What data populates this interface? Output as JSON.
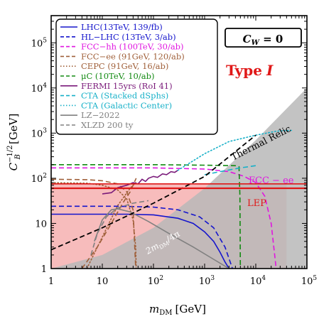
{
  "chart_data": {
    "type": "line",
    "xlabel_main": "m",
    "xlabel_sub": "DM",
    "xlabel_unit": "[GeV]",
    "ylabel_main": "C",
    "ylabel_sub": "B",
    "ylabel_sup": "−1/2",
    "ylabel_unit": "[GeV]",
    "xscale": "log",
    "yscale": "log",
    "xlim": [
      1,
      100000
    ],
    "ylim": [
      1,
      400000
    ],
    "xticks": [
      {
        "v": 1,
        "base": "1",
        "exp": ""
      },
      {
        "v": 10,
        "base": "10",
        "exp": ""
      },
      {
        "v": 100,
        "base": "10",
        "exp": "2"
      },
      {
        "v": 1000,
        "base": "10",
        "exp": "3"
      },
      {
        "v": 10000,
        "base": "10",
        "exp": "4"
      },
      {
        "v": 100000,
        "base": "10",
        "exp": "5"
      }
    ],
    "yticks": [
      {
        "v": 1,
        "base": "1",
        "exp": ""
      },
      {
        "v": 10,
        "base": "10",
        "exp": ""
      },
      {
        "v": 100,
        "base": "10",
        "exp": "2"
      },
      {
        "v": 1000,
        "base": "10",
        "exp": "3"
      },
      {
        "v": 10000,
        "base": "10",
        "exp": "4"
      },
      {
        "v": 100000,
        "base": "10",
        "exp": "5"
      }
    ],
    "badge": "C_W = 0",
    "badge_main": "C",
    "badge_sub": "W",
    "badge_rest": " = 0",
    "type_label": "Type I",
    "type_label_word": "Type",
    "type_label_numeral": "I",
    "annotations": {
      "thermal_relic": "Thermal Relic",
      "fcc_ee": "FCC − ee",
      "lep": "LEP",
      "unitarity_main": "2m",
      "unitarity_sub": "DM",
      "unitarity_rest": "/4π"
    },
    "legend": [
      {
        "label": "LHC(13TeV, 139/fb)",
        "color": "#1515cc",
        "dash": "solid"
      },
      {
        "label": "HL−LHC (13TeV, 3/ab)",
        "color": "#1515cc",
        "dash": "dashed"
      },
      {
        "label": "FCC−hh (100TeV, 30/ab)",
        "color": "#e015e0",
        "dash": "dashed"
      },
      {
        "label": "FCC−ee (91GeV, 120/ab)",
        "color": "#a0603a",
        "dash": "dashed"
      },
      {
        "label": "CEPC (91GeV, 16/ab)",
        "color": "#a0603a",
        "dash": "dotted"
      },
      {
        "label": "μC (10TeV, 10/ab)",
        "color": "#128a12",
        "dash": "dashed"
      },
      {
        "label": "FERMI 15yrs (RoI 41)",
        "color": "#7a1a7a",
        "dash": "solid"
      },
      {
        "label": "CTA (Stacked dSphs)",
        "color": "#16b0c8",
        "dash": "dashed"
      },
      {
        "label": "CTA (Galactic Center)",
        "color": "#16b0c8",
        "dash": "dotted"
      },
      {
        "label": "LZ−2022",
        "color": "#808080",
        "dash": "solid"
      },
      {
        "label": "XLZD 200 ty",
        "color": "#808080",
        "dash": "dashed"
      }
    ],
    "colors": {
      "lep_line": "#e01818",
      "lep_fill": "#f7bcbc",
      "unitarity_fill": "#b8b8b8",
      "type_label": "#e01818",
      "thermal_relic": "#000000"
    },
    "series": [
      {
        "key": "lhc",
        "color": "#1515cc",
        "dash": "solid",
        "x": [
          1,
          30,
          100,
          300,
          600,
          1000,
          1500,
          2000,
          2500,
          3000
        ],
        "y": [
          16,
          16,
          15.5,
          13,
          10,
          6.5,
          4,
          2.3,
          1.4,
          1
        ]
      },
      {
        "key": "hllhc",
        "color": "#1515cc",
        "dash": "dashed",
        "x": [
          1,
          20,
          100,
          300,
          800,
          1500,
          2500,
          3500
        ],
        "y": [
          24,
          24,
          23,
          20,
          14,
          8,
          3,
          1
        ]
      },
      {
        "key": "fcchh",
        "color": "#e015e0",
        "dash": "dashed",
        "x": [
          1,
          100,
          1000,
          3000,
          6000,
          10000,
          15000,
          20000,
          25000
        ],
        "y": [
          170,
          170,
          160,
          140,
          110,
          80,
          40,
          10,
          1
        ]
      },
      {
        "key": "fccee",
        "color": "#a0603a",
        "dash": "dashed",
        "x": [
          4,
          8,
          15,
          25,
          35,
          42,
          45,
          46
        ],
        "y": [
          1,
          3,
          10,
          28,
          50,
          80,
          95,
          100
        ]
      },
      {
        "key": "fccee_top",
        "color": "#a0603a",
        "dash": "dashed",
        "x": [
          1,
          5,
          10,
          20,
          30,
          40,
          45
        ],
        "y": [
          95,
          93,
          88,
          75,
          50,
          20,
          1
        ]
      },
      {
        "key": "cepc",
        "color": "#a0603a",
        "dash": "dotted",
        "x": [
          1,
          5,
          10,
          20,
          30,
          40,
          45,
          46
        ],
        "y": [
          80,
          78,
          70,
          55,
          35,
          12,
          3,
          1
        ]
      },
      {
        "key": "cepc_rise",
        "color": "#a0603a",
        "dash": "dotted",
        "x": [
          5,
          10,
          20,
          35,
          45
        ],
        "y": [
          1,
          5,
          25,
          60,
          80
        ]
      },
      {
        "key": "muc",
        "color": "#128a12",
        "dash": "dashed",
        "x": [
          1,
          100,
          1000,
          4000,
          4700,
          4900,
          5000
        ],
        "y": [
          200,
          200,
          195,
          190,
          180,
          40,
          1
        ]
      },
      {
        "key": "fermi",
        "color": "#7a1a7a",
        "dash": "solid",
        "x": [
          10,
          15,
          20,
          30,
          40,
          50,
          60,
          70,
          80,
          100,
          120,
          150,
          180,
          220,
          260,
          300
        ],
        "y": [
          45,
          48,
          62,
          70,
          80,
          75,
          95,
          85,
          100,
          110,
          105,
          125,
          120,
          140,
          135,
          150
        ]
      },
      {
        "key": "cta_dsph",
        "color": "#16b0c8",
        "dash": "dashed",
        "x": [
          1000,
          2000,
          5000,
          10000
        ],
        "y": [
          120,
          140,
          170,
          190
        ]
      },
      {
        "key": "cta_gc",
        "color": "#16b0c8",
        "dash": "dotted",
        "x": [
          300,
          1000,
          3000,
          10000,
          25000,
          50000
        ],
        "y": [
          150,
          350,
          650,
          900,
          1100,
          1150
        ]
      },
      {
        "key": "lz2022",
        "color": "#808080",
        "dash": "solid",
        "x": [
          7,
          10,
          15,
          20,
          35,
          80,
          200,
          600,
          1500,
          3000
        ],
        "y": [
          4,
          12,
          20,
          21,
          18,
          11,
          6,
          3,
          1.6,
          1
        ]
      },
      {
        "key": "xlzd",
        "color": "#808080",
        "dash": "dashed",
        "x": [
          6,
          8,
          12,
          20,
          40,
          80
        ],
        "y": [
          2,
          6,
          14,
          22,
          28,
          32
        ]
      },
      {
        "key": "thermal_relic",
        "color": "#000000",
        "dash": "dashed",
        "x": [
          1,
          10,
          100,
          1000,
          10000
        ],
        "y": [
          2.6,
          8,
          28,
          110,
          900
        ]
      }
    ],
    "lep": {
      "value": 60,
      "band_top": 75,
      "x_end": 40000
    },
    "unitarity_poly": {
      "x": [
        1,
        10,
        100,
        1000,
        10000,
        100000
      ],
      "y": [
        1,
        2,
        8,
        60,
        700,
        10000
      ]
    }
  }
}
